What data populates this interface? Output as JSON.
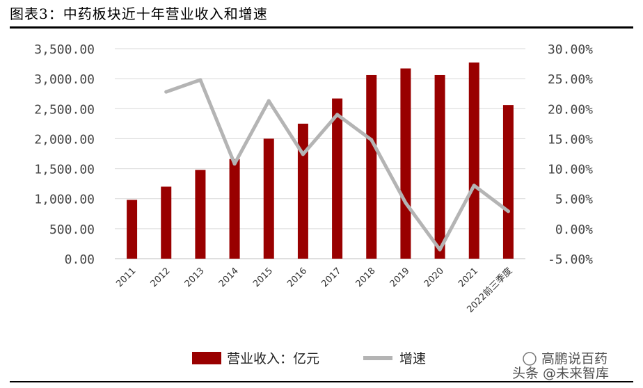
{
  "header": {
    "title": "图表3：中药板块近十年营业收入和增速"
  },
  "chart_data": {
    "type": "bar",
    "categories": [
      "2011",
      "2012",
      "2013",
      "2014",
      "2015",
      "2016",
      "2017",
      "2018",
      "2019",
      "2020",
      "2021",
      "2022前三季度"
    ],
    "series": [
      {
        "name": "营业收入：亿元",
        "type": "bar",
        "axis": "left",
        "color": "#990000",
        "values": [
          980,
          1200,
          1480,
          1660,
          2000,
          2250,
          2670,
          3060,
          3170,
          3060,
          3270,
          2560
        ]
      },
      {
        "name": "增速",
        "type": "line",
        "axis": "right",
        "color": "#b4b4b4",
        "values": [
          null,
          22.8,
          24.8,
          10.8,
          21.3,
          12.4,
          19.0,
          14.8,
          4.3,
          -3.5,
          7.2,
          2.9
        ]
      }
    ],
    "left_axis": {
      "ylim": [
        0,
        3500
      ],
      "tick_labels": [
        "0.00",
        "500.00",
        "1,000.00",
        "1,500.00",
        "2,000.00",
        "2,500.00",
        "3,000.00",
        "3,500.00"
      ]
    },
    "right_axis": {
      "ylim": [
        -5,
        30
      ],
      "tick_labels": [
        "-5.00%",
        "0.00%",
        "5.00%",
        "10.00%",
        "15.00%",
        "20.00%",
        "25.00%",
        "30.00%"
      ]
    },
    "grid": true,
    "legend_position": "bottom"
  },
  "watermark": {
    "line1": "高鹏说百药",
    "line2": "头条 @未来智库"
  }
}
